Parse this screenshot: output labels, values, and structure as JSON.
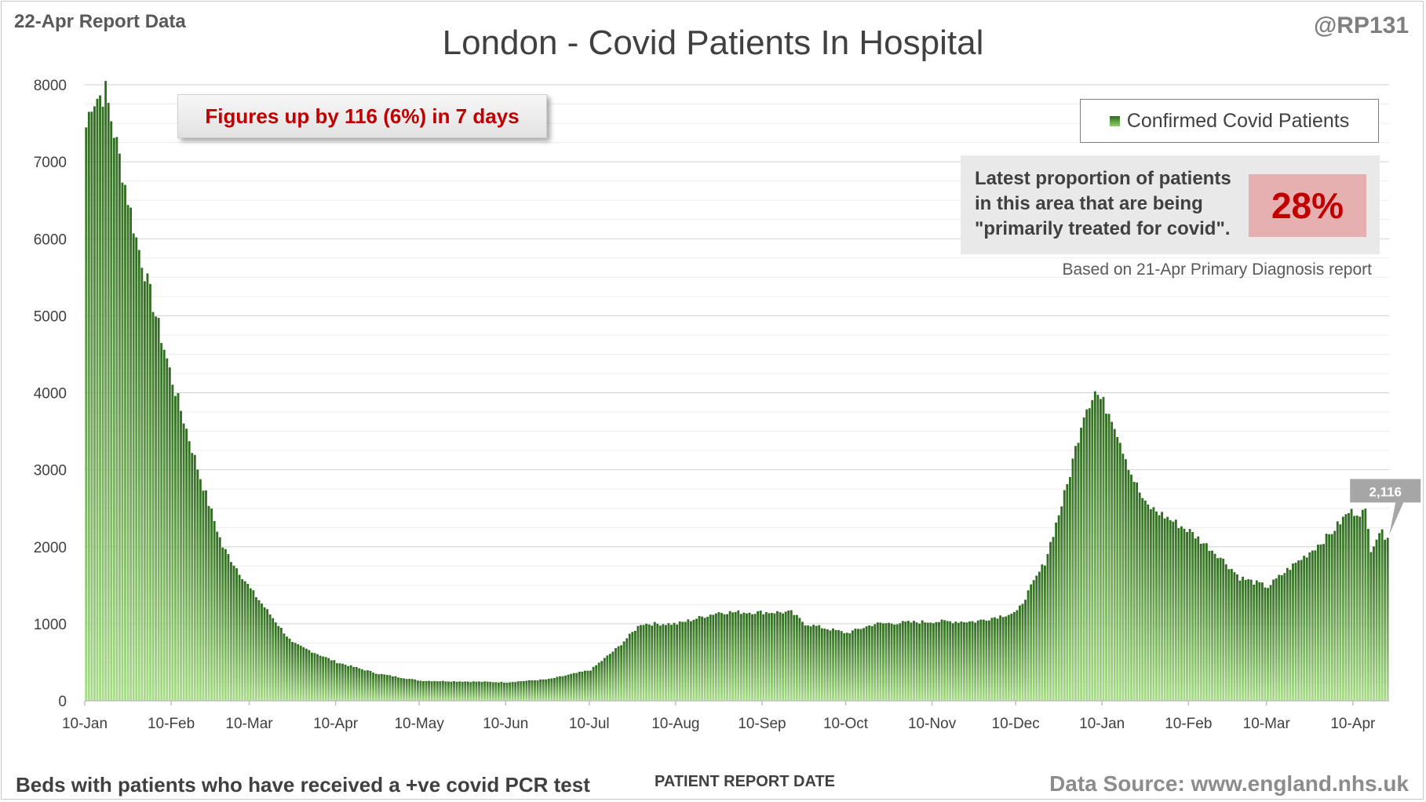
{
  "header": {
    "report_date": "22-Apr Report Data",
    "handle": "@RP131",
    "title": "London - Covid Patients In Hospital"
  },
  "callout": {
    "text": "Figures up by 116 (6%) in 7 days"
  },
  "legend": {
    "label": "Confirmed Covid Patients"
  },
  "proportion_box": {
    "text_lines": [
      "Latest proportion of patients",
      "in this area that are being",
      "\"primarily treated for covid\"."
    ],
    "value": "28%",
    "note": "Based on 21-Apr Primary Diagnosis report"
  },
  "footer": {
    "left": "Beds with patients who have received a +ve covid PCR test",
    "center": "PATIENT REPORT DATE",
    "right": "Data Source: www.england.nhs.uk"
  },
  "colors": {
    "bar_top": "#2e6b1e",
    "bar_bottom": "#a8dc88",
    "callout_text": "#c00000",
    "proportion_bg": "#e6b0b0",
    "grid": "#d9d9d9"
  },
  "chart_data": {
    "type": "bar",
    "title": "London - Covid Patients In Hospital",
    "xlabel": "PATIENT REPORT DATE",
    "ylabel": "",
    "ylim": [
      0,
      8000
    ],
    "yticks": [
      0,
      1000,
      2000,
      3000,
      4000,
      5000,
      6000,
      7000,
      8000
    ],
    "grid": true,
    "legend_position": "top-right",
    "x_start": "10-Jan",
    "x_end": "22-Apr",
    "x_ticks": [
      "10-Jan",
      "10-Feb",
      "10-Mar",
      "10-Apr",
      "10-May",
      "10-Jun",
      "10-Jul",
      "10-Aug",
      "10-Sep",
      "10-Oct",
      "10-Nov",
      "10-Dec",
      "10-Jan",
      "10-Feb",
      "10-Mar",
      "10-Apr"
    ],
    "series": [
      {
        "name": "Confirmed Covid Patients"
      }
    ],
    "shape_keypoints": [
      [
        "10-Jan",
        7450
      ],
      [
        "12-Jan",
        7800
      ],
      [
        "17-Jan",
        7900
      ],
      [
        "22-Jan",
        7050
      ],
      [
        "28-Jan",
        6000
      ],
      [
        "10-Feb",
        4150
      ],
      [
        "20-Feb",
        2900
      ],
      [
        "28-Feb",
        2000
      ],
      [
        "10-Mar",
        1450
      ],
      [
        "25-Mar",
        750
      ],
      [
        "10-Apr",
        500
      ],
      [
        "25-Apr",
        350
      ],
      [
        "10-May",
        260
      ],
      [
        "10-Jun",
        240
      ],
      [
        "25-Jun",
        280
      ],
      [
        "10-Jul",
        400
      ],
      [
        "20-Jul",
        700
      ],
      [
        "28-Jul",
        1000
      ],
      [
        "10-Aug",
        1000
      ],
      [
        "25-Aug",
        1150
      ],
      [
        "10-Sep",
        1150
      ],
      [
        "20-Sep",
        1150
      ],
      [
        "25-Sep",
        1000
      ],
      [
        "10-Oct",
        880
      ],
      [
        "20-Oct",
        1000
      ],
      [
        "10-Nov",
        1030
      ],
      [
        "25-Nov",
        1030
      ],
      [
        "10-Dec",
        1150
      ],
      [
        "20-Dec",
        1800
      ],
      [
        "28-Dec",
        2800
      ],
      [
        "3-Jan",
        3750
      ],
      [
        "7-Jan",
        4020
      ],
      [
        "13-Jan",
        3700
      ],
      [
        "20-Jan",
        2950
      ],
      [
        "25-Jan",
        2550
      ],
      [
        "10-Feb",
        2200
      ],
      [
        "20-Feb",
        1900
      ],
      [
        "28-Feb",
        1600
      ],
      [
        "10-Mar",
        1480
      ],
      [
        "17-Mar",
        1700
      ],
      [
        "24-Mar",
        1900
      ],
      [
        "1-Apr",
        2150
      ],
      [
        "8-Apr",
        2450
      ],
      [
        "14-Apr",
        2450
      ],
      [
        "16-Apr",
        1980
      ],
      [
        "19-Apr",
        2200
      ],
      [
        "22-Apr",
        2116
      ]
    ],
    "annotations": [
      {
        "x": "22-Apr",
        "y": 2116,
        "text": "2,116"
      }
    ]
  }
}
